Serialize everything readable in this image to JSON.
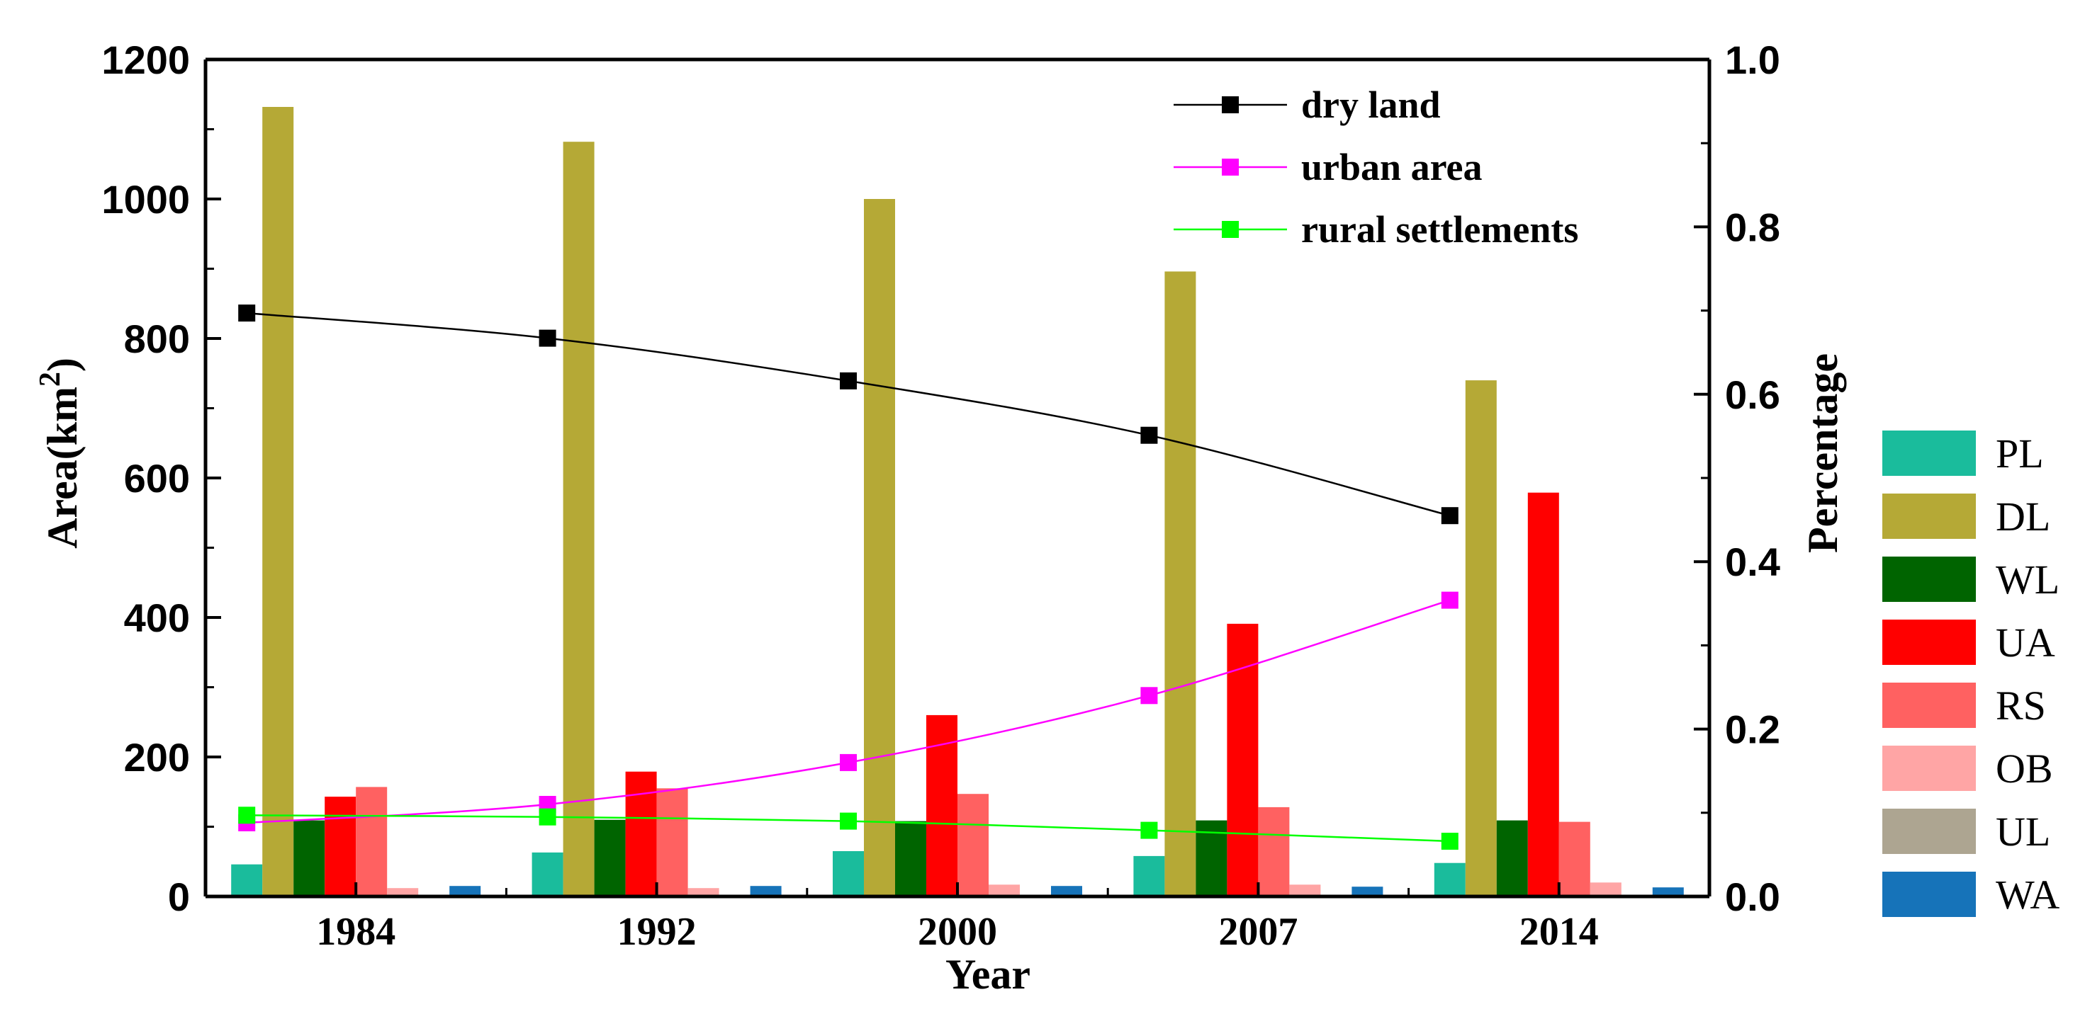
{
  "chart_data": {
    "type": "bar",
    "categories": [
      "1984",
      "1992",
      "2000",
      "2007",
      "2014"
    ],
    "xlabel": "Year",
    "ylabel": "Area(km",
    "ylabel_superscript": "2",
    "ylabel_close": ")",
    "ylabel_right": "Percentage",
    "ylim": [
      0,
      1200
    ],
    "ylim_right": [
      0,
      1.0
    ],
    "y_ticks": [
      "0",
      "200",
      "400",
      "600",
      "800",
      "1000",
      "1200"
    ],
    "y_ticks_right": [
      "0.0",
      "0.2",
      "0.4",
      "0.6",
      "0.8",
      "1.0"
    ],
    "series": [
      {
        "name": "PL",
        "color": "#1ABC9C",
        "values": [
          46,
          63,
          65,
          58,
          48
        ]
      },
      {
        "name": "DL",
        "color": "#B5A936",
        "values": [
          1132,
          1082,
          1000,
          896,
          740
        ]
      },
      {
        "name": "WL",
        "color": "#006400",
        "values": [
          109,
          110,
          108,
          109,
          109
        ]
      },
      {
        "name": "UA",
        "color": "#FF0000",
        "values": [
          143,
          179,
          260,
          391,
          579
        ]
      },
      {
        "name": "RS",
        "color": "#FF6161",
        "values": [
          157,
          155,
          147,
          128,
          107
        ]
      },
      {
        "name": "OB",
        "color": "#FFA5A5",
        "values": [
          12,
          12,
          17,
          17,
          20
        ]
      },
      {
        "name": "UL",
        "color": "#ADA591",
        "values": [
          2,
          2,
          2,
          2,
          2
        ]
      },
      {
        "name": "WA",
        "color": "#1673B9",
        "values": [
          15,
          15,
          15,
          14,
          13
        ]
      }
    ],
    "lines": [
      {
        "name": "dry land",
        "color": "#000000",
        "values": [
          0.697,
          0.667,
          0.616,
          0.551,
          0.455
        ]
      },
      {
        "name": "urban area",
        "color": "#FF00FF",
        "values": [
          0.088,
          0.11,
          0.16,
          0.24,
          0.354
        ]
      },
      {
        "name": "rural settlements",
        "color": "#00FF00",
        "values": [
          0.097,
          0.095,
          0.09,
          0.079,
          0.066
        ]
      }
    ],
    "line_legend_position": "top-right",
    "bar_legend_position": "right"
  }
}
